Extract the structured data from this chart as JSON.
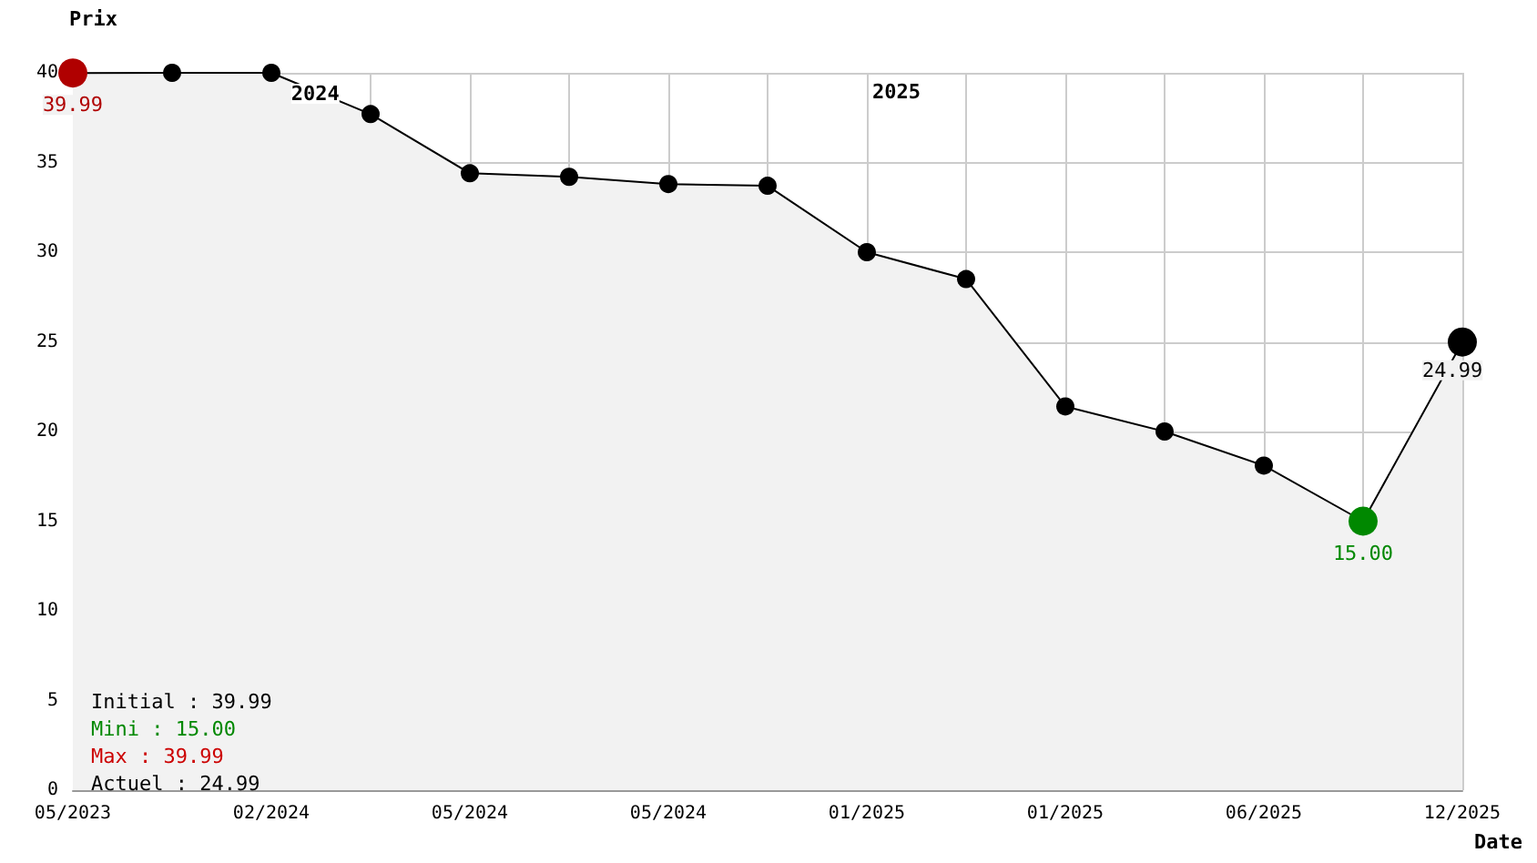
{
  "chart_data": {
    "type": "area",
    "xlabel": "Date",
    "ylabel": "Prix",
    "categories": [
      "05/2023",
      null,
      "02/2024",
      null,
      "05/2024",
      null,
      "05/2024",
      null,
      "01/2025",
      null,
      "01/2025",
      null,
      "06/2025",
      null,
      "12/2025"
    ],
    "series": [
      {
        "color": "#000000",
        "values": [
          39.99,
          40,
          40,
          37.7,
          34.4,
          34.2,
          33.8,
          33.7,
          30.0,
          28.5,
          21.4,
          20.0,
          18.1,
          15.0,
          24.99
        ],
        "colors": [
          "#b00000",
          "#000000",
          "#000000",
          "#000000",
          "#000000",
          "#000000",
          "#000000",
          "#000000",
          "#000000",
          "#000000",
          "#000000",
          "#000000",
          "#000000",
          "#008800",
          "#000000"
        ],
        "value_labels": [
          "39.99",
          null,
          null,
          null,
          null,
          null,
          null,
          null,
          null,
          null,
          null,
          null,
          null,
          "15.00",
          "24.99"
        ]
      }
    ],
    "ylim": [
      0,
      40
    ],
    "yticks": [
      0,
      5,
      10,
      15,
      20,
      25,
      30,
      35,
      40
    ],
    "grid": true,
    "marker": "circle",
    "annotations": [
      "2024",
      "2025",
      "Initial : 39.99",
      "Mini : 15.00",
      "Max : 39.99",
      "Actuel : 24.99"
    ]
  }
}
